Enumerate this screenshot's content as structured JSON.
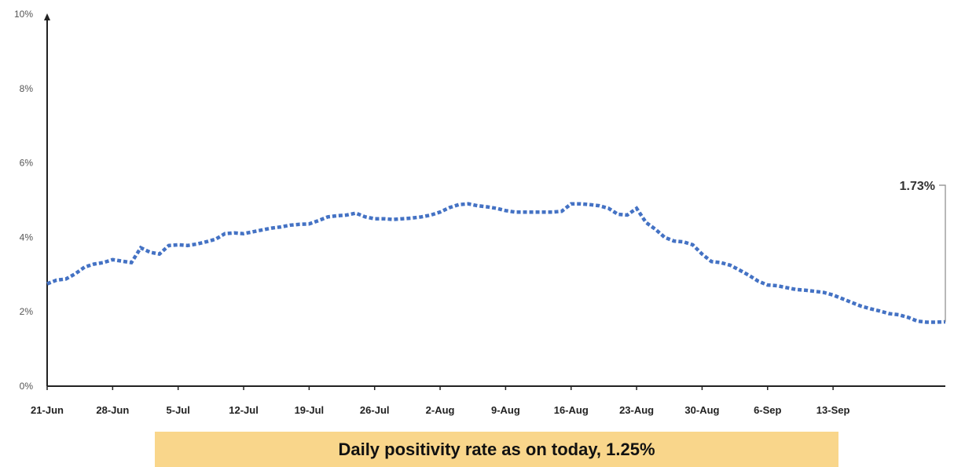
{
  "chart_data": {
    "type": "line",
    "title": "",
    "xlabel": "",
    "ylabel": "",
    "ylim": [
      0,
      10
    ],
    "y_ticks": [
      "0%",
      "2%",
      "4%",
      "6%",
      "8%",
      "10%"
    ],
    "x_ticks": [
      "21-Jun",
      "28-Jun",
      "5-Jul",
      "12-Jul",
      "19-Jul",
      "26-Jul",
      "2-Aug",
      "9-Aug",
      "16-Aug",
      "23-Aug",
      "30-Aug",
      "6-Sep",
      "13-Sep"
    ],
    "x_start": "21-Jun",
    "line_color": "#4472c4",
    "line_style": "dotted",
    "grid": false,
    "series": [
      {
        "values": [
          2.75,
          2.85,
          2.88,
          3.02,
          3.2,
          3.28,
          3.32,
          3.4,
          3.36,
          3.32,
          3.72,
          3.6,
          3.55,
          3.78,
          3.8,
          3.78,
          3.82,
          3.88,
          3.95,
          4.1,
          4.12,
          4.1,
          4.15,
          4.2,
          4.25,
          4.28,
          4.33,
          4.35,
          4.36,
          4.45,
          4.55,
          4.58,
          4.6,
          4.65,
          4.55,
          4.5,
          4.5,
          4.48,
          4.5,
          4.52,
          4.55,
          4.6,
          4.68,
          4.8,
          4.88,
          4.9,
          4.85,
          4.82,
          4.78,
          4.72,
          4.68,
          4.68,
          4.68,
          4.68,
          4.68,
          4.7,
          4.9,
          4.9,
          4.88,
          4.85,
          4.78,
          4.62,
          4.6,
          4.78,
          4.4,
          4.22,
          4.0,
          3.9,
          3.88,
          3.8,
          3.55,
          3.35,
          3.32,
          3.25,
          3.12,
          2.98,
          2.82,
          2.72,
          2.7,
          2.65,
          2.6,
          2.58,
          2.55,
          2.52,
          2.45,
          2.35,
          2.25,
          2.15,
          2.08,
          2.02,
          1.95,
          1.92,
          1.85,
          1.75,
          1.72,
          1.72,
          1.73
        ]
      }
    ],
    "annotation": {
      "label": "1.73%",
      "value": 1.73
    }
  },
  "banner": {
    "text": "Daily positivity rate as on today, 1.25%",
    "background": "#f9d68b"
  }
}
